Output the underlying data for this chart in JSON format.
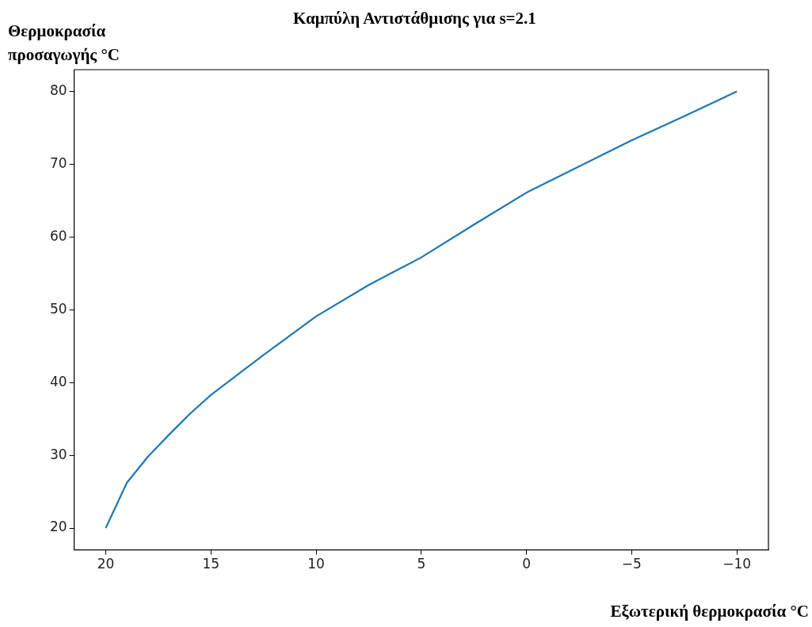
{
  "chart_data": {
    "type": "line",
    "title": "Καμπύλη Αντιστάθμισης για s=2.1",
    "xlabel": "Εξωτερική θερμοκρασία °C",
    "ylabel": "Θερμοκρασία προσαγωγής °C",
    "x": [
      20,
      19,
      18,
      17,
      16,
      15,
      12.5,
      10,
      7.5,
      5,
      2.5,
      0,
      -2.5,
      -5,
      -7.5,
      -10
    ],
    "series": [
      {
        "color": "#1f77b4",
        "values": [
          20,
          26.2,
          29.8,
          32.8,
          35.7,
          38.3,
          43.8,
          49.1,
          53.4,
          57.2,
          61.7,
          66.1,
          69.7,
          73.3,
          76.6,
          80
        ]
      }
    ],
    "xlim": [
      21.5,
      -11.5
    ],
    "xticks": [
      20,
      15,
      10,
      5,
      0,
      {
        "value": -5,
        "label": "−5"
      },
      {
        "value": -10,
        "label": "−10"
      }
    ],
    "ylim": [
      17,
      83
    ],
    "yticks": [
      20,
      30,
      40,
      50,
      60,
      70,
      80
    ],
    "grid": false,
    "legend": false
  }
}
